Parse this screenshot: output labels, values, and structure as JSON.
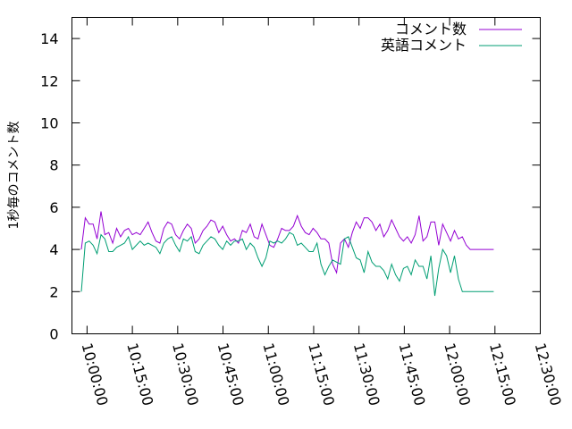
{
  "chart_data": {
    "type": "line",
    "ylabel": "1秒毎のコメント数",
    "ylim": [
      0,
      15
    ],
    "yticks": [
      0,
      2,
      4,
      6,
      8,
      10,
      12,
      14
    ],
    "ytick_labels": [
      "0",
      "2",
      "4",
      "6",
      "8",
      "10",
      "12",
      "14"
    ],
    "xlim_minutes": [
      -5,
      150
    ],
    "xticks_minutes": [
      0,
      15,
      30,
      45,
      60,
      75,
      90,
      105,
      120,
      135,
      150
    ],
    "xtick_labels": [
      "10:00:00",
      "10:15:00",
      "10:30:00",
      "10:45:00",
      "11:00:00",
      "11:15:00",
      "11:30:00",
      "11:45:00",
      "12:00:00",
      "12:15:00",
      "12:30:00"
    ],
    "grid": false,
    "legend_position": "top-right",
    "series": [
      {
        "name": "コメント数",
        "color": "#9400d3",
        "x_minutes": [
          -1.9,
          -0.6,
          0.7,
          2,
          3.3,
          4.6,
          5.9,
          7.2,
          8.5,
          9.8,
          11.1,
          12.4,
          13.7,
          15,
          16.3,
          17.6,
          18.9,
          20.2,
          21.5,
          22.8,
          24.1,
          25.4,
          26.7,
          28,
          29.3,
          30.6,
          31.9,
          33.2,
          34.5,
          35.8,
          37.1,
          38.4,
          39.7,
          41,
          42.3,
          43.6,
          44.9,
          46.2,
          47.5,
          48.8,
          50.1,
          51.4,
          52.7,
          54,
          55.3,
          56.6,
          57.9,
          59.2,
          60.5,
          61.8,
          63.1,
          64.4,
          65.7,
          67,
          68.3,
          69.6,
          70.9,
          72.2,
          73.5,
          74.8,
          76.1,
          77.4,
          78.7,
          80,
          81.3,
          82.6,
          83.9,
          85.2,
          86.5,
          87.8,
          89.1,
          90.4,
          91.7,
          93,
          94.3,
          95.6,
          96.9,
          98.2,
          99.5,
          100.8,
          102.1,
          103.4,
          104.7,
          106,
          107.3,
          108.6,
          109.9,
          111.2,
          112.5,
          113.8,
          115.1,
          116.4,
          117.7,
          119,
          120.3,
          121.6,
          122.9,
          124.2,
          125.5,
          126.8,
          128.1,
          129.4,
          130.7,
          132,
          133.3,
          134.6
        ],
        "y": [
          4.0,
          5.5,
          5.2,
          5.2,
          4.5,
          5.8,
          4.7,
          4.8,
          4.3,
          5.0,
          4.6,
          4.9,
          5.0,
          4.7,
          4.8,
          4.7,
          5.0,
          5.3,
          4.8,
          4.4,
          4.3,
          5.0,
          5.3,
          5.2,
          4.7,
          4.5,
          4.9,
          5.2,
          5.0,
          4.3,
          4.5,
          4.9,
          5.1,
          5.4,
          5.3,
          4.8,
          5.1,
          4.7,
          4.4,
          4.5,
          4.3,
          4.9,
          4.8,
          5.2,
          4.6,
          4.5,
          5.2,
          4.7,
          4.2,
          4.1,
          4.5,
          5.0,
          4.9,
          4.9,
          5.1,
          5.6,
          5.1,
          4.8,
          4.7,
          5.0,
          4.8,
          4.5,
          4.5,
          4.3,
          3.3,
          2.9,
          4.3,
          4.5,
          4.1,
          4.8,
          5.3,
          5.0,
          5.5,
          5.5,
          5.3,
          4.9,
          5.2,
          4.6,
          4.9,
          5.4,
          5.0,
          4.6,
          4.4,
          4.6,
          4.3,
          4.7,
          5.6,
          4.4,
          4.6,
          5.3,
          5.3,
          4.2,
          5.2,
          4.8,
          4.4,
          4.9,
          4.5,
          4.6,
          4.2,
          4.0,
          4.0,
          4.0,
          4.0,
          4.0,
          4.0,
          4.0
        ],
        "note": ""
      },
      {
        "name": "英語コメント",
        "color": "#009e73",
        "x_minutes": [
          -1.9,
          -0.6,
          0.7,
          2,
          3.3,
          4.6,
          5.9,
          7.2,
          8.5,
          9.8,
          11.1,
          12.4,
          13.7,
          15,
          16.3,
          17.6,
          18.9,
          20.2,
          21.5,
          22.8,
          24.1,
          25.4,
          26.7,
          28,
          29.3,
          30.6,
          31.9,
          33.2,
          34.5,
          35.8,
          37.1,
          38.4,
          39.7,
          41,
          42.3,
          43.6,
          44.9,
          46.2,
          47.5,
          48.8,
          50.1,
          51.4,
          52.7,
          54,
          55.3,
          56.6,
          57.9,
          59.2,
          60.5,
          61.8,
          63.1,
          64.4,
          65.7,
          67,
          68.3,
          69.6,
          70.9,
          72.2,
          73.5,
          74.8,
          76.1,
          77.4,
          78.7,
          80,
          81.3,
          82.6,
          83.9,
          85.2,
          86.5,
          87.8,
          89.1,
          90.4,
          91.7,
          93,
          94.3,
          95.6,
          96.9,
          98.2,
          99.5,
          100.8,
          102.1,
          103.4,
          104.7,
          106,
          107.3,
          108.6,
          109.9,
          111.2,
          112.5,
          113.8,
          115.1,
          116.4,
          117.7,
          119,
          120.3,
          121.6,
          122.9,
          124.2,
          125.5,
          126.8,
          128.1,
          129.4,
          130.7,
          132,
          133.3,
          134.6
        ],
        "y": [
          2.0,
          4.3,
          4.4,
          4.2,
          3.8,
          4.7,
          4.5,
          3.9,
          3.9,
          4.1,
          4.2,
          4.3,
          4.6,
          4.0,
          4.2,
          4.4,
          4.2,
          4.3,
          4.2,
          4.1,
          3.8,
          4.3,
          4.5,
          4.6,
          4.2,
          3.9,
          4.5,
          4.4,
          4.6,
          3.9,
          3.8,
          4.2,
          4.4,
          4.6,
          4.5,
          4.2,
          4.0,
          4.4,
          4.2,
          4.4,
          4.4,
          4.5,
          4.0,
          4.3,
          4.1,
          3.6,
          3.2,
          3.6,
          4.4,
          4.3,
          4.4,
          4.3,
          4.5,
          4.8,
          4.7,
          4.2,
          4.3,
          4.1,
          3.9,
          3.9,
          4.3,
          3.3,
          2.8,
          3.2,
          3.5,
          3.4,
          3.3,
          4.5,
          4.6,
          4.1,
          3.6,
          3.5,
          2.9,
          3.9,
          3.4,
          3.2,
          3.2,
          3.0,
          2.6,
          3.3,
          2.8,
          2.5,
          3.1,
          3.2,
          2.8,
          3.5,
          3.2,
          3.2,
          2.6,
          3.7,
          1.8,
          3.1,
          4.0,
          3.7,
          2.9,
          3.7,
          2.6,
          2.0,
          2.0,
          2.0,
          2.0,
          2.0,
          2.0,
          2.0,
          2.0,
          2.0
        ],
        "note": ""
      }
    ]
  }
}
